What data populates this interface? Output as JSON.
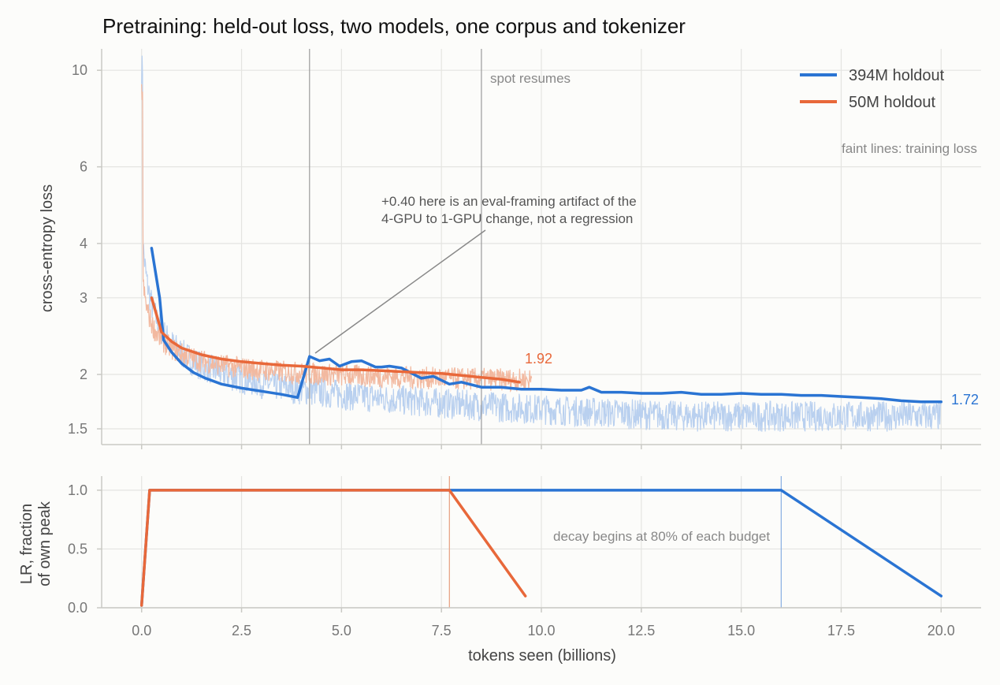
{
  "title": "Pretraining: held-out loss, two models, one corpus and tokenizer",
  "colors": {
    "blue": "#2a74d3",
    "orange": "#e8683a",
    "blue_faint": "#b9d0ef",
    "orange_faint": "#f2b9a0",
    "vline": "#9a9a9a"
  },
  "chart_data": [
    {
      "type": "line",
      "name": "loss",
      "ylabel": "cross-entropy loss",
      "y_scale": "log",
      "ylim": [
        1.38,
        11.2
      ],
      "xlim": [
        -1.0,
        21.0
      ],
      "y_ticks": [
        1.5,
        2,
        3,
        4,
        6,
        10
      ],
      "y_tick_labels": [
        "1.5",
        "2",
        "3",
        "4",
        "6",
        "10"
      ],
      "x_ticks": [
        0,
        2.5,
        5,
        7.5,
        10,
        12.5,
        15,
        17.5,
        20
      ],
      "grid": true,
      "legend_position": "top-right",
      "series": [
        {
          "name": "394M holdout",
          "color": "#2a74d3",
          "x": [
            0.25,
            0.45,
            0.55,
            0.75,
            1.0,
            1.3,
            1.6,
            2.0,
            2.5,
            3.0,
            3.5,
            3.9,
            4.2,
            4.45,
            4.7,
            4.95,
            5.25,
            5.5,
            5.85,
            6.0,
            6.2,
            6.5,
            7.0,
            7.3,
            7.7,
            8.0,
            8.5,
            9.0,
            9.5,
            10.0,
            10.5,
            11.0,
            11.2,
            11.5,
            12.0,
            12.5,
            13.0,
            13.5,
            14.0,
            14.5,
            15.0,
            15.5,
            16.0,
            16.5,
            17.0,
            17.5,
            18.0,
            18.5,
            19.0,
            19.5,
            20.0
          ],
          "values": [
            3.9,
            3.0,
            2.4,
            2.25,
            2.12,
            2.02,
            1.96,
            1.9,
            1.86,
            1.83,
            1.8,
            1.77,
            2.2,
            2.15,
            2.17,
            2.09,
            2.14,
            2.15,
            2.08,
            2.08,
            2.09,
            2.07,
            1.96,
            1.98,
            1.9,
            1.92,
            1.87,
            1.87,
            1.85,
            1.85,
            1.84,
            1.84,
            1.87,
            1.82,
            1.82,
            1.81,
            1.81,
            1.82,
            1.8,
            1.8,
            1.81,
            1.8,
            1.8,
            1.79,
            1.79,
            1.78,
            1.77,
            1.76,
            1.74,
            1.73,
            1.73
          ]
        },
        {
          "name": "50M holdout",
          "color": "#e8683a",
          "x": [
            0.25,
            0.5,
            0.75,
            1.0,
            1.5,
            2.0,
            2.5,
            3.0,
            3.5,
            4.0,
            4.5,
            5.0,
            5.5,
            6.0,
            6.5,
            7.0,
            7.5,
            8.0,
            8.5,
            9.0,
            9.45
          ],
          "values": [
            3.0,
            2.5,
            2.38,
            2.3,
            2.22,
            2.17,
            2.14,
            2.12,
            2.1,
            2.09,
            2.07,
            2.05,
            2.05,
            2.04,
            2.03,
            2.02,
            2.01,
            1.99,
            1.97,
            1.95,
            1.92
          ]
        }
      ],
      "faint_series_note": "faint lines: training loss",
      "end_labels": [
        {
          "series": "50M holdout",
          "text": "1.92"
        },
        {
          "series": "394M holdout",
          "text": "1.72"
        }
      ],
      "vlines_x": [
        4.2,
        8.5
      ],
      "vline_label": "spot resumes",
      "annotation": {
        "text_line1": "+0.40 here is an eval-framing artifact of the",
        "text_line2": "4-GPU to 1-GPU change, not a regression",
        "arrow_to_x": 4.3,
        "arrow_to_y": 2.2
      }
    },
    {
      "type": "line",
      "name": "lr",
      "ylabel_line1": "LR, fraction",
      "ylabel_line2": "of own peak",
      "xlabel": "tokens seen (billions)",
      "ylim": [
        0.0,
        1.12
      ],
      "xlim": [
        -1.0,
        21.0
      ],
      "y_ticks": [
        0.0,
        0.5,
        1.0
      ],
      "y_tick_labels": [
        "0.0",
        "0.5",
        "1.0"
      ],
      "x_ticks": [
        0,
        2.5,
        5,
        7.5,
        10,
        12.5,
        15,
        17.5,
        20
      ],
      "x_tick_labels": [
        "0.0",
        "2.5",
        "5.0",
        "7.5",
        "10.0",
        "12.5",
        "15.0",
        "17.5",
        "20.0"
      ],
      "series": [
        {
          "name": "394M",
          "color": "#2a74d3",
          "x": [
            0.0,
            0.2,
            16.0,
            20.0
          ],
          "values": [
            0.02,
            1.0,
            1.0,
            0.1
          ]
        },
        {
          "name": "50M",
          "color": "#e8683a",
          "x": [
            0.0,
            0.2,
            7.7,
            9.6
          ],
          "values": [
            0.02,
            1.0,
            1.0,
            0.1
          ]
        }
      ],
      "vlines_x": [
        7.7,
        16.0
      ],
      "note": "decay begins at 80% of each budget"
    }
  ]
}
